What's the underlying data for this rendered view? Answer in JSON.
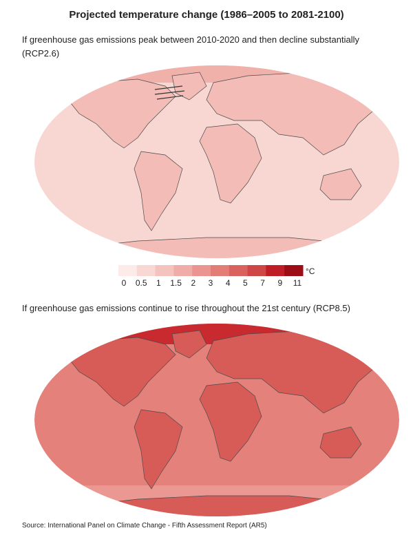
{
  "title": "Projected temperature change (1986–2005 to 2081-2100)",
  "maps": [
    {
      "caption_lines": [
        "If greenhouse gas emissions peak between 2010-2020 and then decline substantially",
        "(RCP2.6)"
      ]
    },
    {
      "caption_lines": [
        "If greenhouse gas emissions continue to rise throughout the 21st century (RCP8.5)"
      ]
    }
  ],
  "legend": {
    "unit": "°C",
    "ticks": [
      0,
      0.5,
      1,
      1.5,
      2,
      3,
      4,
      5,
      7,
      9,
      11
    ],
    "colors": [
      "#fcebe9",
      "#f9d7d3",
      "#f5c3be",
      "#f0aca6",
      "#ea958f",
      "#e37c77",
      "#d9625e",
      "#ce4645",
      "#bf1e26",
      "#9c0d16"
    ]
  },
  "source": "Source: International Panel on Climate Change - Fifth Assessment Report (AR5)"
}
